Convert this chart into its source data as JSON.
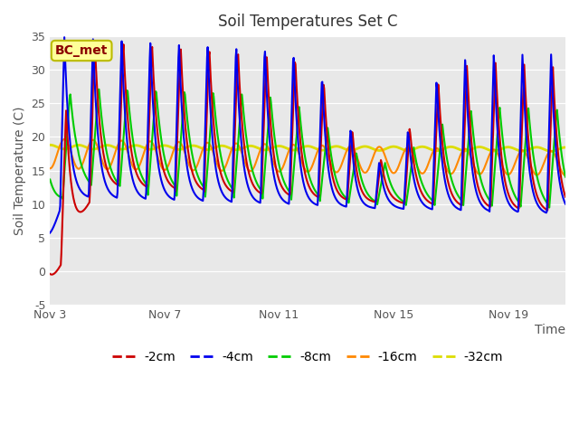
{
  "title": "Soil Temperatures Set C",
  "xlabel": "Time",
  "ylabel": "Soil Temperature (C)",
  "ylim": [
    -5,
    35
  ],
  "xlim_days": [
    0,
    18
  ],
  "xtick_positions": [
    0,
    4,
    8,
    12,
    16
  ],
  "xtick_labels": [
    "Nov 3",
    "Nov 7",
    "Nov 11",
    "Nov 15",
    "Nov 19"
  ],
  "ytick_positions": [
    -5,
    0,
    5,
    10,
    15,
    20,
    25,
    30,
    35
  ],
  "legend_entries": [
    "-2cm",
    "-4cm",
    "-8cm",
    "-16cm",
    "-32cm"
  ],
  "line_colors": [
    "#cc0000",
    "#0000ee",
    "#00cc00",
    "#ff8800",
    "#dddd00"
  ],
  "line_widths": [
    1.5,
    1.5,
    1.5,
    1.5,
    2.0
  ],
  "annotation_label": "BC_met",
  "background_color": "#e8e8e8",
  "title_fontsize": 12,
  "label_fontsize": 10,
  "tick_fontsize": 9,
  "legend_fontsize": 10
}
